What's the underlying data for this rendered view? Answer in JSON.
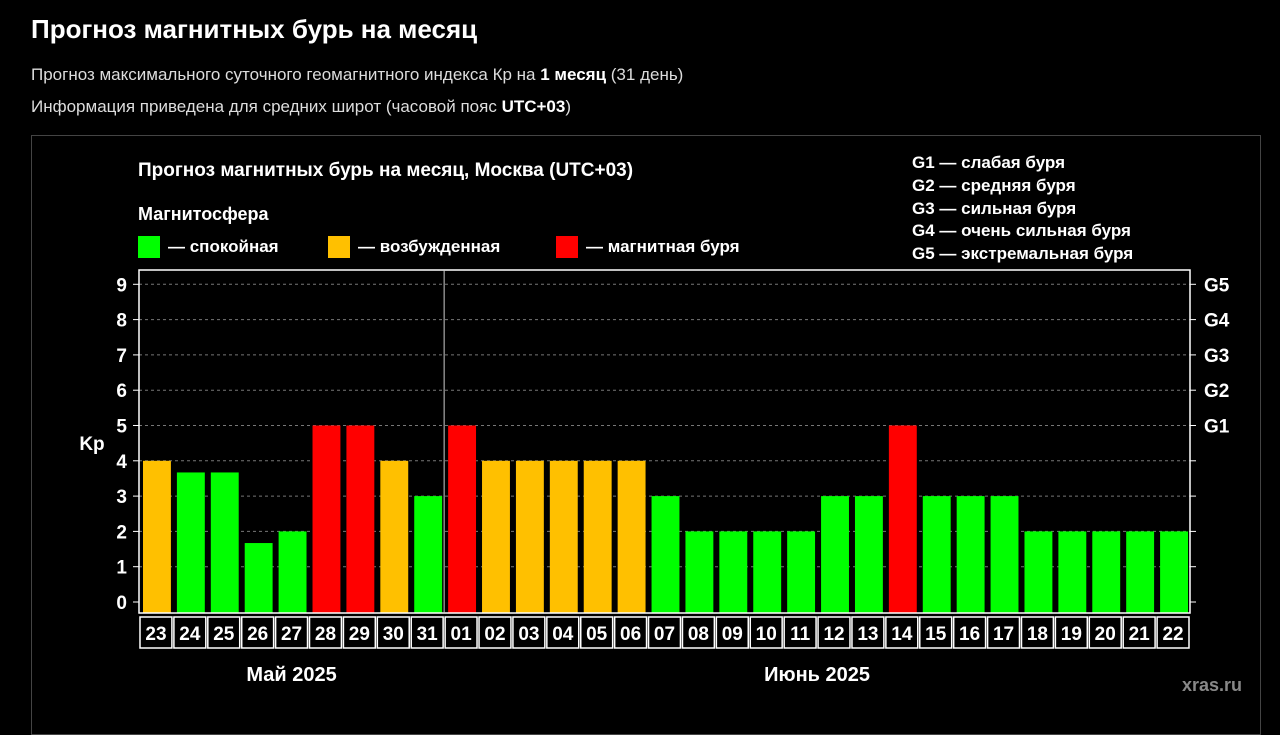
{
  "header": {
    "title": "Прогноз магнитных бурь на месяц",
    "line1_pre": "Прогноз максимального суточного геомагнитного индекса Кр на ",
    "line1_bold": "1 месяц",
    "line1_post": " (31 день)",
    "line2_pre": "Информация приведена для средних широт (часовой пояс ",
    "line2_bold": "UTC+03",
    "line2_post": ")"
  },
  "legend": {
    "title": "Магнитосфера",
    "items": [
      {
        "label": "— спокойная",
        "color": "#00ff00"
      },
      {
        "label": "— возбужденная",
        "color": "#ffc000"
      },
      {
        "label": "— магнитная буря",
        "color": "#ff0000"
      }
    ]
  },
  "g_legend": [
    "G1 — слабая буря",
    "G2 — средняя буря",
    "G3 — сильная буря",
    "G4 — очень сильная буря",
    "G5 — экстремальная буря"
  ],
  "watermark": "xras.ru",
  "chart_data": {
    "type": "bar",
    "title": "Прогноз магнитных бурь на месяц, Москва (UTC+03)",
    "ylabel": "Kp",
    "ylim": [
      0,
      9
    ],
    "yticks": [
      "0",
      "1",
      "2",
      "3",
      "4",
      "5",
      "6",
      "7",
      "8",
      "9"
    ],
    "right_ticks": [
      {
        "value": 5,
        "label": "G1"
      },
      {
        "value": 6,
        "label": "G2"
      },
      {
        "value": 7,
        "label": "G3"
      },
      {
        "value": 8,
        "label": "G4"
      },
      {
        "value": 9,
        "label": "G5"
      }
    ],
    "months": [
      {
        "label": "Май 2025",
        "count": 9
      },
      {
        "label": "Июнь 2025",
        "count": 22
      }
    ],
    "categories": [
      "23",
      "24",
      "25",
      "26",
      "27",
      "28",
      "29",
      "30",
      "31",
      "01",
      "02",
      "03",
      "04",
      "05",
      "06",
      "07",
      "08",
      "09",
      "10",
      "11",
      "12",
      "13",
      "14",
      "15",
      "16",
      "17",
      "18",
      "19",
      "20",
      "21",
      "22"
    ],
    "values": [
      4,
      3.67,
      3.67,
      1.67,
      2,
      5,
      5,
      4,
      3,
      5,
      4,
      4,
      4,
      4,
      4,
      3,
      2,
      2,
      2,
      2,
      3,
      3,
      5,
      3,
      3,
      3,
      2,
      2,
      2,
      2,
      2
    ],
    "colors": {
      "quiet": "#00ff00",
      "active": "#ffc000",
      "storm": "#ff0000"
    }
  }
}
